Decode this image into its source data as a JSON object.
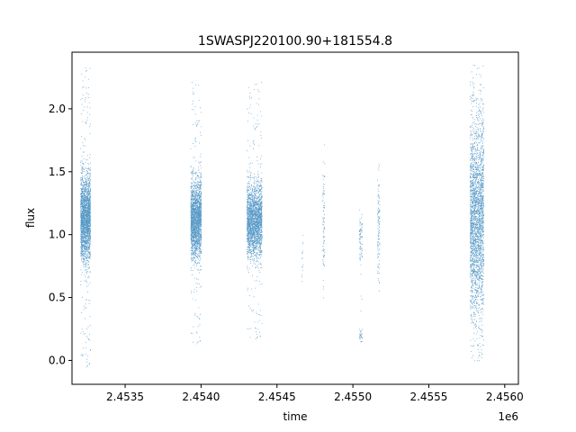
{
  "chart_data": {
    "type": "scatter",
    "title": "1SWASPJ220100.90+181554.8",
    "xlabel": "time",
    "ylabel": "flux",
    "x_offset_label": "1e6",
    "x_unit_scale": 1000000,
    "xlim": [
      2453150,
      2456090
    ],
    "ylim": [
      -0.19,
      2.45
    ],
    "x_ticks": [
      2453500,
      2454000,
      2454500,
      2455000,
      2455500,
      2456000
    ],
    "x_tick_labels": [
      "2.4535",
      "2.4540",
      "2.4545",
      "2.4550",
      "2.4555",
      "2.4560"
    ],
    "y_ticks": [
      0.0,
      0.5,
      1.0,
      1.5,
      2.0
    ],
    "y_tick_labels": [
      "0.0",
      "0.5",
      "1.0",
      "1.5",
      "2.0"
    ],
    "grid": false,
    "point_color": "#1f77b4",
    "clusters": [
      {
        "t_start": 2453205,
        "t_end": 2453270,
        "flux_mean": 1.13,
        "flux_spread": 0.16,
        "flux_min": -0.08,
        "flux_max": 2.33,
        "density": 2400
      },
      {
        "t_start": 2453930,
        "t_end": 2454000,
        "flux_mean": 1.12,
        "flux_spread": 0.15,
        "flux_min": 0.11,
        "flux_max": 2.26,
        "density": 2200
      },
      {
        "t_start": 2454300,
        "t_end": 2454400,
        "flux_mean": 1.11,
        "flux_spread": 0.14,
        "flux_min": 0.15,
        "flux_max": 2.22,
        "density": 2400
      },
      {
        "t_start": 2454660,
        "t_end": 2454670,
        "flux_mean": 0.85,
        "flux_spread": 0.12,
        "flux_min": 0.6,
        "flux_max": 1.0,
        "density": 15
      },
      {
        "t_start": 2454800,
        "t_end": 2454812,
        "flux_mean": 1.1,
        "flux_spread": 0.25,
        "flux_min": 0.2,
        "flux_max": 1.88,
        "density": 90
      },
      {
        "t_start": 2455040,
        "t_end": 2455060,
        "flux_mean": 1.0,
        "flux_spread": 0.1,
        "flux_min": 0.17,
        "flux_max": 1.2,
        "density": 80
      },
      {
        "t_start": 2455040,
        "t_end": 2455060,
        "flux_mean": 0.2,
        "flux_spread": 0.03,
        "flux_min": 0.15,
        "flux_max": 0.25,
        "density": 30
      },
      {
        "t_start": 2455160,
        "t_end": 2455175,
        "flux_mean": 1.05,
        "flux_spread": 0.2,
        "flux_min": 0.5,
        "flux_max": 1.66,
        "density": 110
      },
      {
        "t_start": 2455770,
        "t_end": 2455860,
        "flux_mean": 1.13,
        "flux_spread": 0.38,
        "flux_min": 0.0,
        "flux_max": 2.35,
        "density": 9000
      }
    ]
  }
}
